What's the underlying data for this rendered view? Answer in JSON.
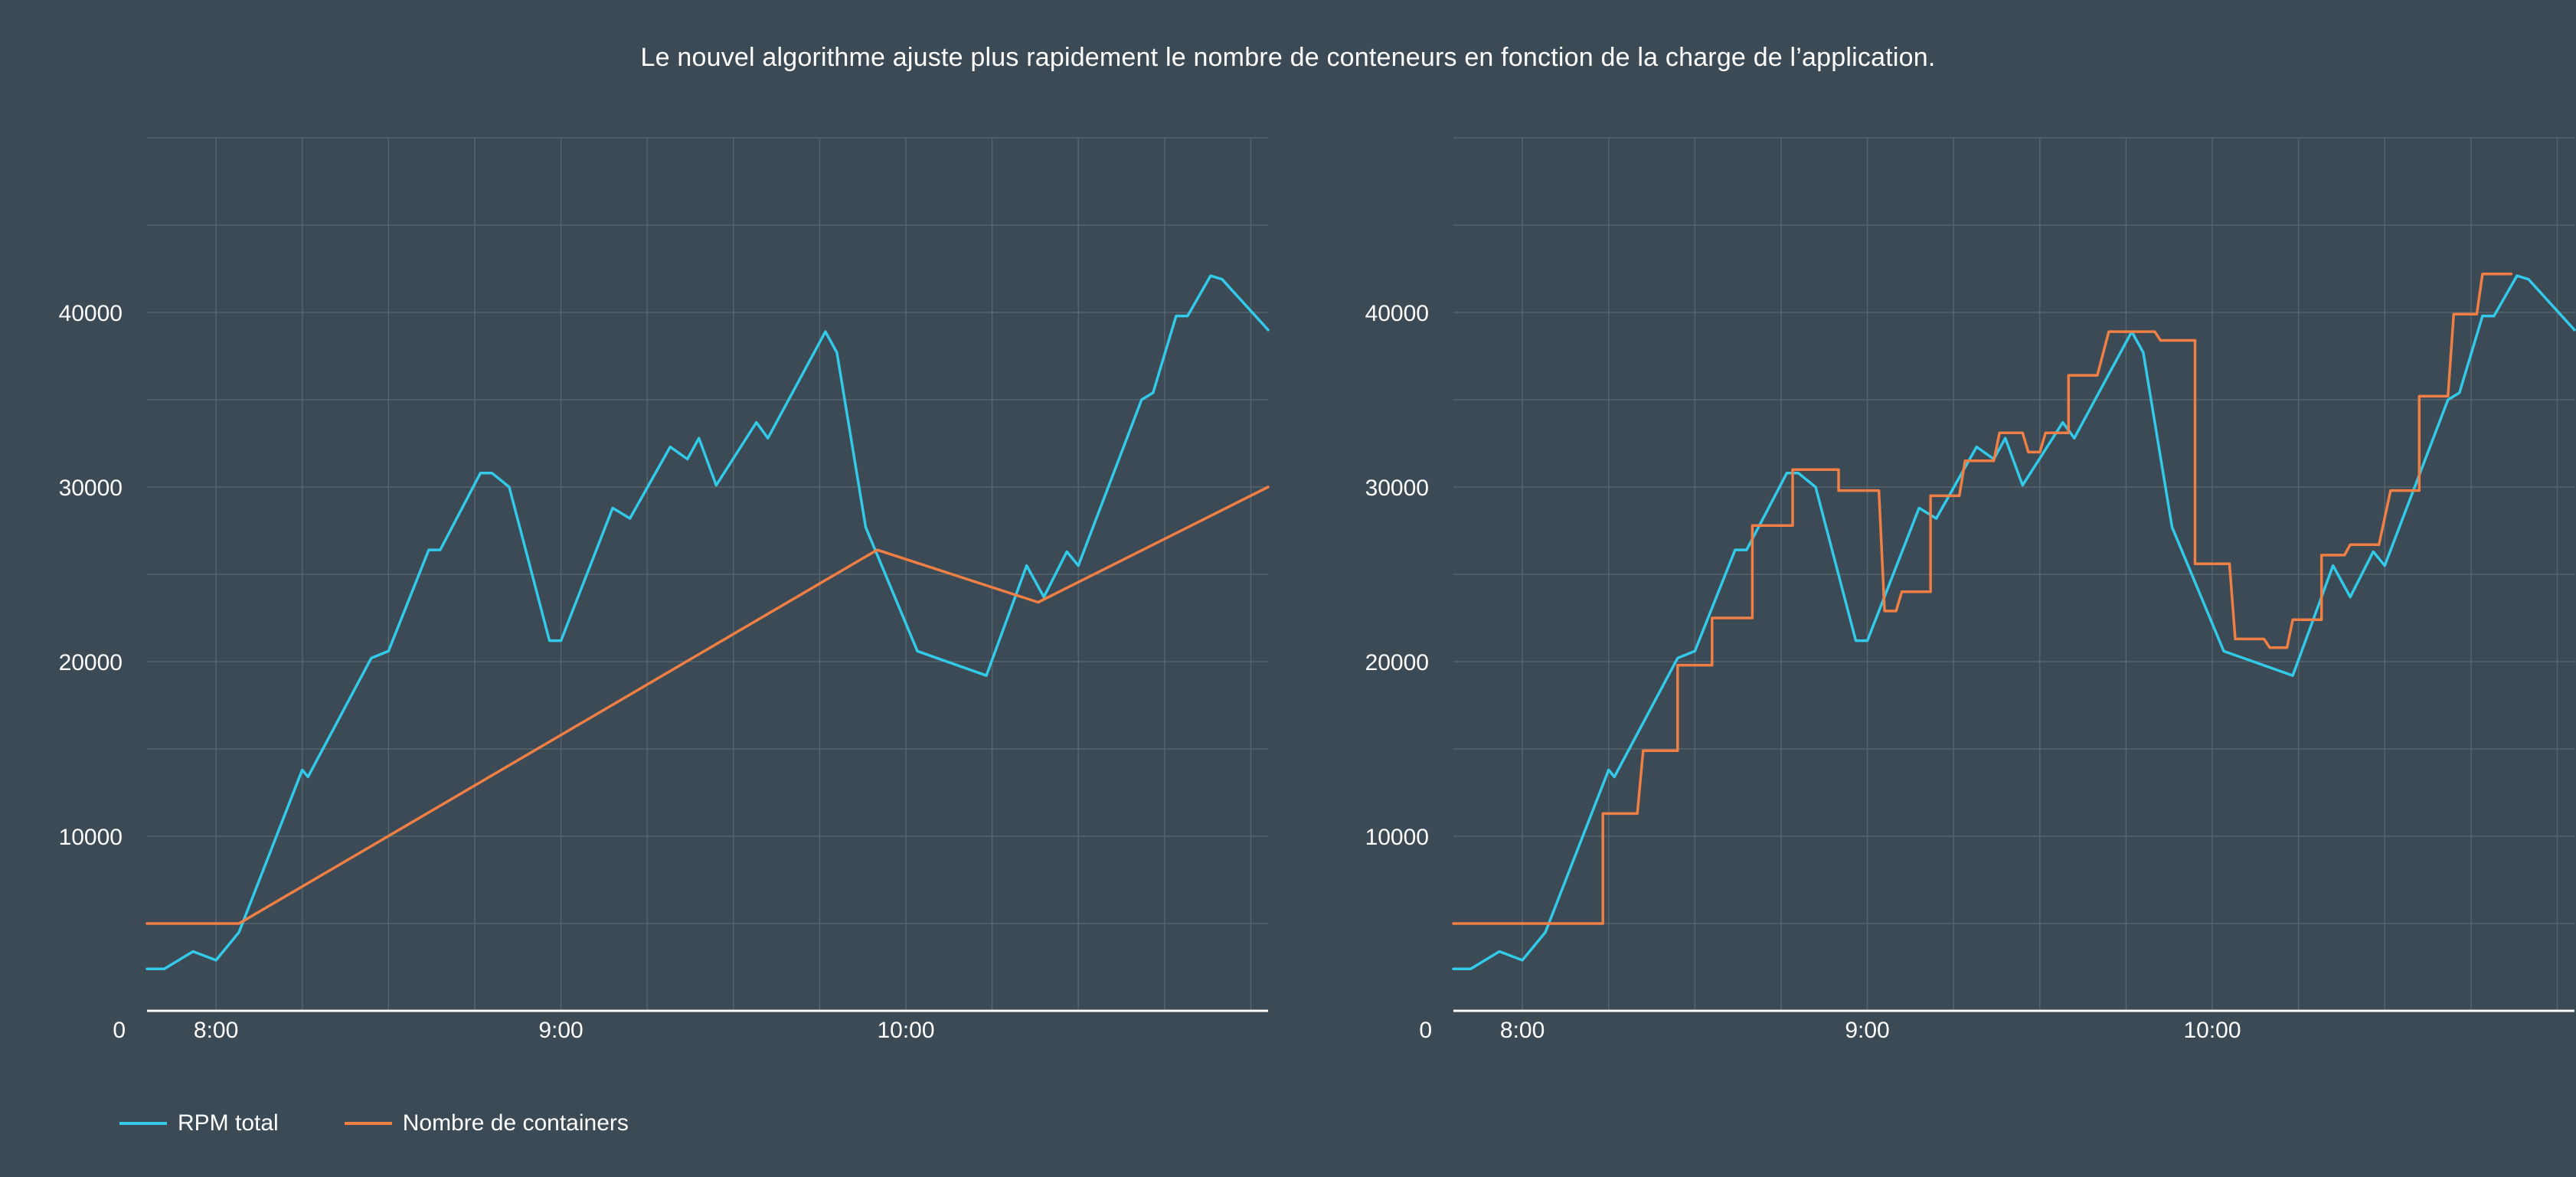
{
  "title": "Le nouvel algorithme ajuste plus rapidement le nombre de conteneurs en fonction de la charge de l’application.",
  "colors": {
    "background": "#3b4a54",
    "grid": "#56646d",
    "rpm": "#33c9e8",
    "containers": "#ef7f45",
    "axis": "#ffffff"
  },
  "legend": [
    {
      "label": "RPM total",
      "color": "#33c9e8"
    },
    {
      "label": "Nombre de containers",
      "color": "#ef7f45"
    }
  ],
  "chart_data": [
    {
      "type": "line",
      "title": "",
      "xlabel": "",
      "ylabel": "",
      "x_unit": "time",
      "xlim": [
        "7:48",
        "11:03"
      ],
      "ylim": [
        0,
        50000
      ],
      "yticks": [
        0,
        10000,
        20000,
        30000,
        40000
      ],
      "ytick_labels": [
        "0",
        "10000",
        "20000",
        "30000",
        "40000"
      ],
      "xticks": [
        "8:00",
        "9:00",
        "10:00"
      ],
      "grid": true,
      "series": [
        {
          "name": "RPM total",
          "points": [
            [
              "7:48",
              2400
            ],
            [
              "7:51",
              2400
            ],
            [
              "7:56",
              3400
            ],
            [
              "8:00",
              2900
            ],
            [
              "8:04",
              4500
            ],
            [
              "8:15",
              13800
            ],
            [
              "8:16",
              13400
            ],
            [
              "8:27",
              20200
            ],
            [
              "8:30",
              20600
            ],
            [
              "8:37",
              26400
            ],
            [
              "8:39",
              26400
            ],
            [
              "8:46",
              30800
            ],
            [
              "8:48",
              30800
            ],
            [
              "8:51",
              30000
            ],
            [
              "8:58",
              21200
            ],
            [
              "9:00",
              21200
            ],
            [
              "9:09",
              28800
            ],
            [
              "9:12",
              28200
            ],
            [
              "9:19",
              32300
            ],
            [
              "9:22",
              31600
            ],
            [
              "9:24",
              32800
            ],
            [
              "9:27",
              30100
            ],
            [
              "9:34",
              33700
            ],
            [
              "9:36",
              32800
            ],
            [
              "9:46",
              38900
            ],
            [
              "9:48",
              37700
            ],
            [
              "9:53",
              27700
            ],
            [
              "10:02",
              20600
            ],
            [
              "10:14",
              19200
            ],
            [
              "10:21",
              25500
            ],
            [
              "10:24",
              23700
            ],
            [
              "10:28",
              26300
            ],
            [
              "10:30",
              25500
            ],
            [
              "10:41",
              35000
            ],
            [
              "10:43",
              35400
            ],
            [
              "10:47",
              39800
            ],
            [
              "10:49",
              39800
            ],
            [
              "10:53",
              42100
            ],
            [
              "10:55",
              41900
            ],
            [
              "11:03",
              39000
            ]
          ]
        },
        {
          "name": "Nombre de containers",
          "points": [
            [
              "7:48",
              5000
            ],
            [
              "8:04",
              5000
            ],
            [
              "9:55",
              26400
            ],
            [
              "10:23",
              23400
            ],
            [
              "11:03",
              30000
            ]
          ]
        }
      ]
    },
    {
      "type": "line",
      "title": "",
      "xlabel": "",
      "ylabel": "",
      "x_unit": "time",
      "xlim": [
        "7:48",
        "11:03"
      ],
      "ylim": [
        0,
        50000
      ],
      "yticks": [
        0,
        10000,
        20000,
        30000,
        40000
      ],
      "ytick_labels": [
        "0",
        "10000",
        "20000",
        "30000",
        "40000"
      ],
      "xticks": [
        "8:00",
        "9:00",
        "10:00"
      ],
      "grid": true,
      "series": [
        {
          "name": "RPM total",
          "points": [
            [
              "7:48",
              2400
            ],
            [
              "7:51",
              2400
            ],
            [
              "7:56",
              3400
            ],
            [
              "8:00",
              2900
            ],
            [
              "8:04",
              4500
            ],
            [
              "8:15",
              13800
            ],
            [
              "8:16",
              13400
            ],
            [
              "8:27",
              20200
            ],
            [
              "8:30",
              20600
            ],
            [
              "8:37",
              26400
            ],
            [
              "8:39",
              26400
            ],
            [
              "8:46",
              30800
            ],
            [
              "8:48",
              30800
            ],
            [
              "8:51",
              30000
            ],
            [
              "8:58",
              21200
            ],
            [
              "9:00",
              21200
            ],
            [
              "9:09",
              28800
            ],
            [
              "9:12",
              28200
            ],
            [
              "9:19",
              32300
            ],
            [
              "9:22",
              31600
            ],
            [
              "9:24",
              32800
            ],
            [
              "9:27",
              30100
            ],
            [
              "9:34",
              33700
            ],
            [
              "9:36",
              32800
            ],
            [
              "9:46",
              38900
            ],
            [
              "9:48",
              37700
            ],
            [
              "9:53",
              27700
            ],
            [
              "10:02",
              20600
            ],
            [
              "10:14",
              19200
            ],
            [
              "10:21",
              25500
            ],
            [
              "10:24",
              23700
            ],
            [
              "10:28",
              26300
            ],
            [
              "10:30",
              25500
            ],
            [
              "10:41",
              35000
            ],
            [
              "10:43",
              35400
            ],
            [
              "10:47",
              39800
            ],
            [
              "10:49",
              39800
            ],
            [
              "10:53",
              42100
            ],
            [
              "10:55",
              41900
            ],
            [
              "11:03",
              39000
            ]
          ]
        },
        {
          "name": "Nombre de containers",
          "points": [
            [
              "7:48",
              5000
            ],
            [
              "8:14",
              5000
            ],
            [
              "8:14",
              11300
            ],
            [
              "8:20",
              11300
            ],
            [
              "8:21",
              14900
            ],
            [
              "8:27",
              14900
            ],
            [
              "8:27",
              19800
            ],
            [
              "8:33",
              19800
            ],
            [
              "8:33",
              22500
            ],
            [
              "8:40",
              22500
            ],
            [
              "8:40",
              27800
            ],
            [
              "8:47",
              27800
            ],
            [
              "8:47",
              31000
            ],
            [
              "8:55",
              31000
            ],
            [
              "8:55",
              29800
            ],
            [
              "9:02",
              29800
            ],
            [
              "9:03",
              22900
            ],
            [
              "9:05",
              22900
            ],
            [
              "9:06",
              24000
            ],
            [
              "9:11",
              24000
            ],
            [
              "9:11",
              29500
            ],
            [
              "9:16",
              29500
            ],
            [
              "9:17",
              31500
            ],
            [
              "9:22",
              31500
            ],
            [
              "9:23",
              33100
            ],
            [
              "9:27",
              33100
            ],
            [
              "9:28",
              32000
            ],
            [
              "9:30",
              32000
            ],
            [
              "9:31",
              33100
            ],
            [
              "9:35",
              33100
            ],
            [
              "9:35",
              36400
            ],
            [
              "9:40",
              36400
            ],
            [
              "9:42",
              38900
            ],
            [
              "9:50",
              38900
            ],
            [
              "9:51",
              38400
            ],
            [
              "9:57",
              38400
            ],
            [
              "9:57",
              25600
            ],
            [
              "10:03",
              25600
            ],
            [
              "10:04",
              21300
            ],
            [
              "10:09",
              21300
            ],
            [
              "10:10",
              20800
            ],
            [
              "10:13",
              20800
            ],
            [
              "10:14",
              22400
            ],
            [
              "10:19",
              22400
            ],
            [
              "10:19",
              26100
            ],
            [
              "10:23",
              26100
            ],
            [
              "10:24",
              26700
            ],
            [
              "10:29",
              26700
            ],
            [
              "10:31",
              29800
            ],
            [
              "10:36",
              29800
            ],
            [
              "10:36",
              35200
            ],
            [
              "10:41",
              35200
            ],
            [
              "10:42",
              39900
            ],
            [
              "10:46",
              39900
            ],
            [
              "10:47",
              42200
            ],
            [
              "10:52",
              42200
            ]
          ]
        }
      ]
    }
  ]
}
